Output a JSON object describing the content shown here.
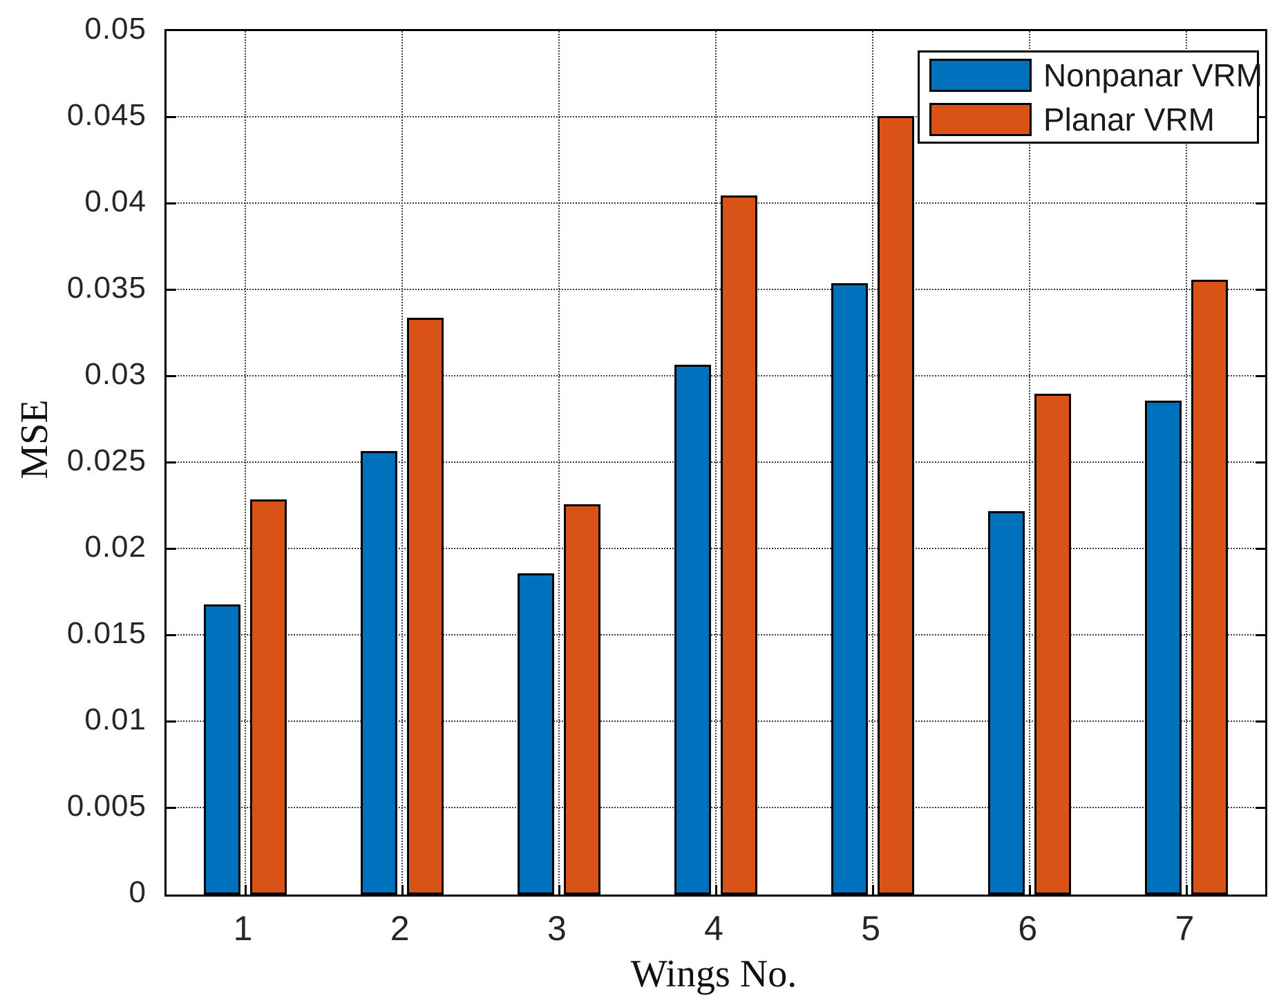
{
  "chart_data": {
    "type": "bar",
    "title": "",
    "xlabel": "Wings No.",
    "ylabel": "MSE",
    "categories": [
      "1",
      "2",
      "3",
      "4",
      "5",
      "6",
      "7"
    ],
    "series": [
      {
        "name": "Nonpanar VRM",
        "color": "#0072BD",
        "values": [
          0.0168,
          0.0257,
          0.0186,
          0.0307,
          0.0354,
          0.0222,
          0.0286
        ]
      },
      {
        "name": "Planar VRM",
        "color": "#D95319",
        "values": [
          0.0229,
          0.0334,
          0.0226,
          0.0405,
          0.0451,
          0.029,
          0.0356
        ]
      }
    ],
    "ylim": [
      0,
      0.05
    ],
    "ytick_step": 0.005,
    "ytick_labels": [
      "0",
      "0.005",
      "0.01",
      "0.015",
      "0.02",
      "0.025",
      "0.03",
      "0.035",
      "0.04",
      "0.045",
      "0.05"
    ],
    "grid": true,
    "legend_position": "top-right",
    "edge_color": "#000000",
    "background_color": "#ffffff"
  }
}
